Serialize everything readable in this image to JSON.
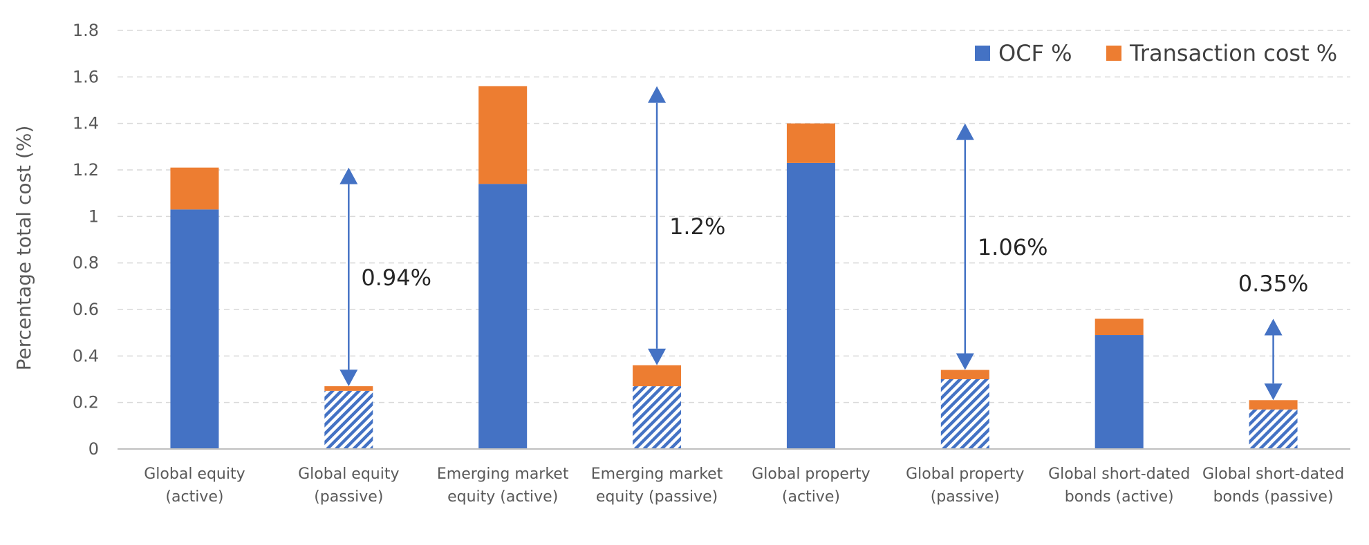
{
  "chart_data": {
    "type": "bar",
    "stacked": true,
    "title": "",
    "xlabel": "",
    "ylabel": "Percentage total cost (%)",
    "ylim": [
      0,
      1.8
    ],
    "yticks": [
      0,
      0.2,
      0.4,
      0.6,
      0.8,
      1,
      1.2,
      1.4,
      1.6,
      1.8
    ],
    "ytick_labels": [
      "0",
      "0.2",
      "0.4",
      "0.6",
      "0.8",
      "1",
      "1.2",
      "1.4",
      "1.6",
      "1.8"
    ],
    "grid": true,
    "legend_position": "top-right",
    "categories": [
      [
        "Global equity",
        "(active)"
      ],
      [
        "Global equity",
        "(passive)"
      ],
      [
        "Emerging market",
        "equity (active)"
      ],
      [
        "Emerging market",
        "equity (passive)"
      ],
      [
        "Global property",
        "(active)"
      ],
      [
        "Global property",
        "(passive)"
      ],
      [
        "Global short-dated",
        "bonds (active)"
      ],
      [
        "Global short-dated",
        "bonds (passive)"
      ]
    ],
    "passive": [
      false,
      true,
      false,
      true,
      false,
      true,
      false,
      true
    ],
    "series": [
      {
        "name": "OCF %",
        "color": "#4472C4",
        "values": [
          1.03,
          0.25,
          1.14,
          0.27,
          1.23,
          0.3,
          0.49,
          0.17
        ]
      },
      {
        "name": "Transaction cost %",
        "color": "#ED7D31",
        "values": [
          0.18,
          0.02,
          0.42,
          0.09,
          0.17,
          0.04,
          0.07,
          0.04
        ]
      }
    ],
    "annotations": [
      {
        "category_index": 1,
        "label": "0.94%",
        "from": 0.27,
        "to": 1.21
      },
      {
        "category_index": 3,
        "label": "1.2%",
        "from": 0.36,
        "to": 1.56
      },
      {
        "category_index": 5,
        "label": "1.06%",
        "from": 0.34,
        "to": 1.4
      },
      {
        "category_index": 7,
        "label": "0.35%",
        "from": 0.21,
        "to": 0.56
      }
    ]
  }
}
